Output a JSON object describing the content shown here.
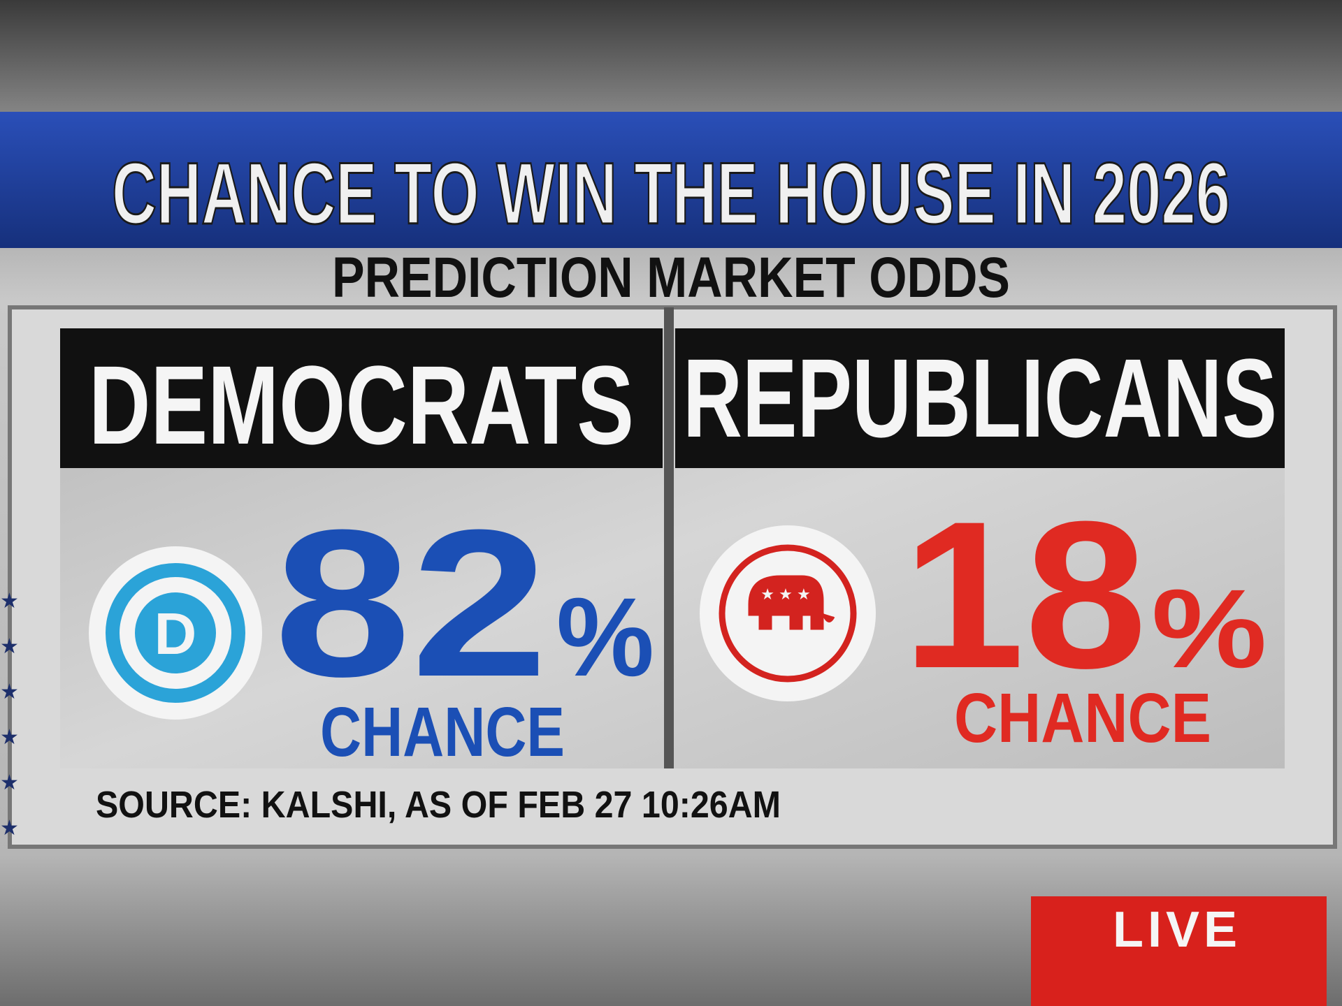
{
  "header": {
    "title": "CHANCE TO WIN THE HOUSE IN 2026",
    "subtitle": "PREDICTION MARKET ODDS"
  },
  "parties": [
    {
      "name": "DEMOCRATS",
      "logo": "D",
      "value": 82,
      "unit": "%",
      "label": "CHANCE"
    },
    {
      "name": "REPUBLICANS",
      "value": 18,
      "unit": "%",
      "label": "CHANCE"
    }
  ],
  "source": "SOURCE: KALSHI, AS OF FEB 27 10:26AM",
  "badge": "LIVE"
}
